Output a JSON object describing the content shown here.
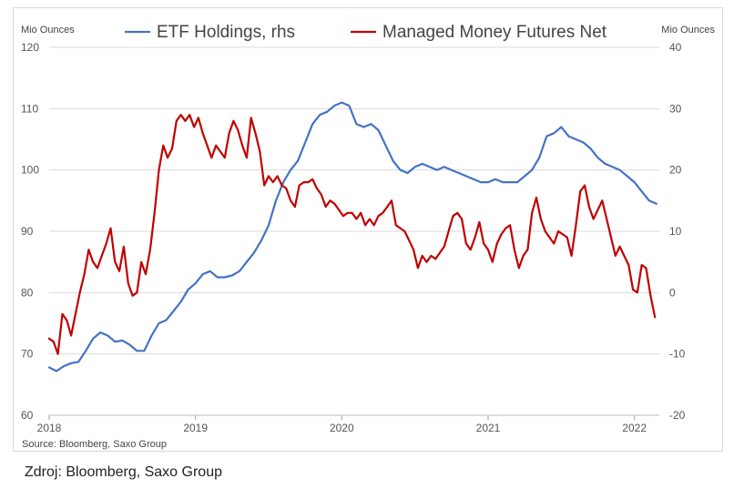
{
  "caption": "Zdroj: Bloomberg, Saxo Group",
  "chart_data": {
    "type": "line",
    "title": "",
    "left_axis_label": "Mio Ounces",
    "right_axis_label": "Mio Ounces",
    "source": "Source: Bloomberg, Saxo Group",
    "x_ticks": [
      "2018",
      "2019",
      "2020",
      "2021",
      "2022"
    ],
    "x_range": [
      2018.0,
      2022.17
    ],
    "left_ylim": [
      60,
      120
    ],
    "left_ticks": [
      "60",
      "70",
      "80",
      "90",
      "100",
      "110",
      "120"
    ],
    "right_ylim": [
      -20,
      40
    ],
    "right_ticks": [
      "-20",
      "-10",
      "0",
      "10",
      "20",
      "30",
      "40"
    ],
    "grid": "horizontal",
    "legend_position": "top",
    "series": [
      {
        "name": "ETF Holdings, rhs",
        "axis": "right",
        "color": "#4472c4",
        "x": [
          2018.0,
          2018.05,
          2018.1,
          2018.15,
          2018.2,
          2018.25,
          2018.3,
          2018.35,
          2018.4,
          2018.45,
          2018.5,
          2018.55,
          2018.6,
          2018.65,
          2018.7,
          2018.75,
          2018.8,
          2018.85,
          2018.9,
          2018.95,
          2019.0,
          2019.05,
          2019.1,
          2019.15,
          2019.2,
          2019.25,
          2019.3,
          2019.35,
          2019.4,
          2019.45,
          2019.5,
          2019.55,
          2019.6,
          2019.65,
          2019.7,
          2019.75,
          2019.8,
          2019.85,
          2019.9,
          2019.95,
          2020.0,
          2020.05,
          2020.1,
          2020.15,
          2020.2,
          2020.25,
          2020.3,
          2020.35,
          2020.4,
          2020.45,
          2020.5,
          2020.55,
          2020.6,
          2020.65,
          2020.7,
          2020.75,
          2020.8,
          2020.85,
          2020.9,
          2020.95,
          2021.0,
          2021.05,
          2021.1,
          2021.15,
          2021.2,
          2021.25,
          2021.3,
          2021.35,
          2021.4,
          2021.45,
          2021.5,
          2021.55,
          2021.6,
          2021.65,
          2021.7,
          2021.75,
          2021.8,
          2021.85,
          2021.9,
          2021.95,
          2022.0,
          2022.05,
          2022.1,
          2022.15
        ],
        "values": [
          -12.2,
          -12.8,
          -12.0,
          -11.5,
          -11.3,
          -9.5,
          -7.5,
          -6.5,
          -7.0,
          -8.0,
          -7.8,
          -8.5,
          -9.5,
          -9.5,
          -7.0,
          -5.0,
          -4.5,
          -3.0,
          -1.5,
          0.5,
          1.5,
          3.0,
          3.5,
          2.5,
          2.5,
          2.8,
          3.5,
          5.0,
          6.5,
          8.5,
          11.0,
          15.0,
          18.0,
          20.0,
          21.5,
          24.5,
          27.5,
          29.0,
          29.5,
          30.5,
          31.0,
          30.5,
          27.5,
          27.0,
          27.5,
          26.5,
          24.0,
          21.5,
          20.0,
          19.5,
          20.5,
          21.0,
          20.5,
          20.0,
          20.5,
          20.0,
          19.5,
          19.0,
          18.5,
          18.0,
          18.0,
          18.5,
          18.0,
          18.0,
          18.0,
          19.0,
          20.0,
          22.0,
          25.5,
          26.0,
          27.0,
          25.5,
          25.0,
          24.5,
          23.5,
          22.0,
          21.0,
          20.5,
          20.0,
          19.0,
          18.0,
          16.5,
          15.0,
          14.5
        ]
      },
      {
        "name": "Managed Money Futures Net",
        "axis": "left",
        "color": "#c00000",
        "x": [
          2018.0,
          2018.03,
          2018.06,
          2018.09,
          2018.12,
          2018.15,
          2018.18,
          2018.21,
          2018.24,
          2018.27,
          2018.3,
          2018.33,
          2018.36,
          2018.39,
          2018.42,
          2018.45,
          2018.48,
          2018.51,
          2018.54,
          2018.57,
          2018.6,
          2018.63,
          2018.66,
          2018.69,
          2018.72,
          2018.75,
          2018.78,
          2018.81,
          2018.84,
          2018.87,
          2018.9,
          2018.93,
          2018.96,
          2018.99,
          2019.02,
          2019.05,
          2019.08,
          2019.11,
          2019.14,
          2019.17,
          2019.2,
          2019.23,
          2019.26,
          2019.29,
          2019.32,
          2019.35,
          2019.38,
          2019.41,
          2019.44,
          2019.47,
          2019.5,
          2019.53,
          2019.56,
          2019.59,
          2019.62,
          2019.65,
          2019.68,
          2019.71,
          2019.74,
          2019.77,
          2019.8,
          2019.83,
          2019.86,
          2019.89,
          2019.92,
          2019.95,
          2019.98,
          2020.01,
          2020.04,
          2020.07,
          2020.1,
          2020.13,
          2020.16,
          2020.19,
          2020.22,
          2020.25,
          2020.28,
          2020.31,
          2020.34,
          2020.37,
          2020.4,
          2020.43,
          2020.46,
          2020.49,
          2020.52,
          2020.55,
          2020.58,
          2020.61,
          2020.64,
          2020.67,
          2020.7,
          2020.73,
          2020.76,
          2020.79,
          2020.82,
          2020.85,
          2020.88,
          2020.91,
          2020.94,
          2020.97,
          2021.0,
          2021.03,
          2021.06,
          2021.09,
          2021.12,
          2021.15,
          2021.18,
          2021.21,
          2021.24,
          2021.27,
          2021.3,
          2021.33,
          2021.36,
          2021.39,
          2021.42,
          2021.45,
          2021.48,
          2021.51,
          2021.54,
          2021.57,
          2021.6,
          2021.63,
          2021.66,
          2021.69,
          2021.72,
          2021.75,
          2021.78,
          2021.81,
          2021.84,
          2021.87,
          2021.9,
          2021.93,
          2021.96,
          2021.99,
          2022.02,
          2022.05,
          2022.08,
          2022.11,
          2022.14
        ],
        "values": [
          72.5,
          72.0,
          70.0,
          76.5,
          75.5,
          73.0,
          76.5,
          80.0,
          83.0,
          87.0,
          85.0,
          84.0,
          86.0,
          88.0,
          90.5,
          85.0,
          83.5,
          87.5,
          81.5,
          79.5,
          80.0,
          85.0,
          83.0,
          87.0,
          93.0,
          100.0,
          104.0,
          102.0,
          103.5,
          108.0,
          109.0,
          108.0,
          109.0,
          107.0,
          108.5,
          106.0,
          104.0,
          102.0,
          104.0,
          103.0,
          102.0,
          106.0,
          108.0,
          106.5,
          104.0,
          102.0,
          108.5,
          106.0,
          103.0,
          97.5,
          99.0,
          98.0,
          99.0,
          97.5,
          97.0,
          95.0,
          94.0,
          97.5,
          98.0,
          98.0,
          98.5,
          97.0,
          96.0,
          94.0,
          95.0,
          94.5,
          93.5,
          92.5,
          93.0,
          93.0,
          92.0,
          93.0,
          91.0,
          92.0,
          91.0,
          92.5,
          93.0,
          94.0,
          95.0,
          91.0,
          90.5,
          90.0,
          88.5,
          87.0,
          84.0,
          86.0,
          85.0,
          86.0,
          85.5,
          86.5,
          87.5,
          90.0,
          92.5,
          93.0,
          92.0,
          88.0,
          87.0,
          89.0,
          91.5,
          88.0,
          87.0,
          85.0,
          88.0,
          89.5,
          90.5,
          91.0,
          87.0,
          84.0,
          86.0,
          87.0,
          93.0,
          95.5,
          92.0,
          90.0,
          89.0,
          88.0,
          90.0,
          89.5,
          89.0,
          86.0,
          91.0,
          96.5,
          97.5,
          94.0,
          92.0,
          93.5,
          95.0,
          92.0,
          89.0,
          86.0,
          87.5,
          86.0,
          84.5,
          80.5,
          80.0,
          84.5,
          84.0,
          79.5,
          76.0
        ]
      }
    ]
  }
}
